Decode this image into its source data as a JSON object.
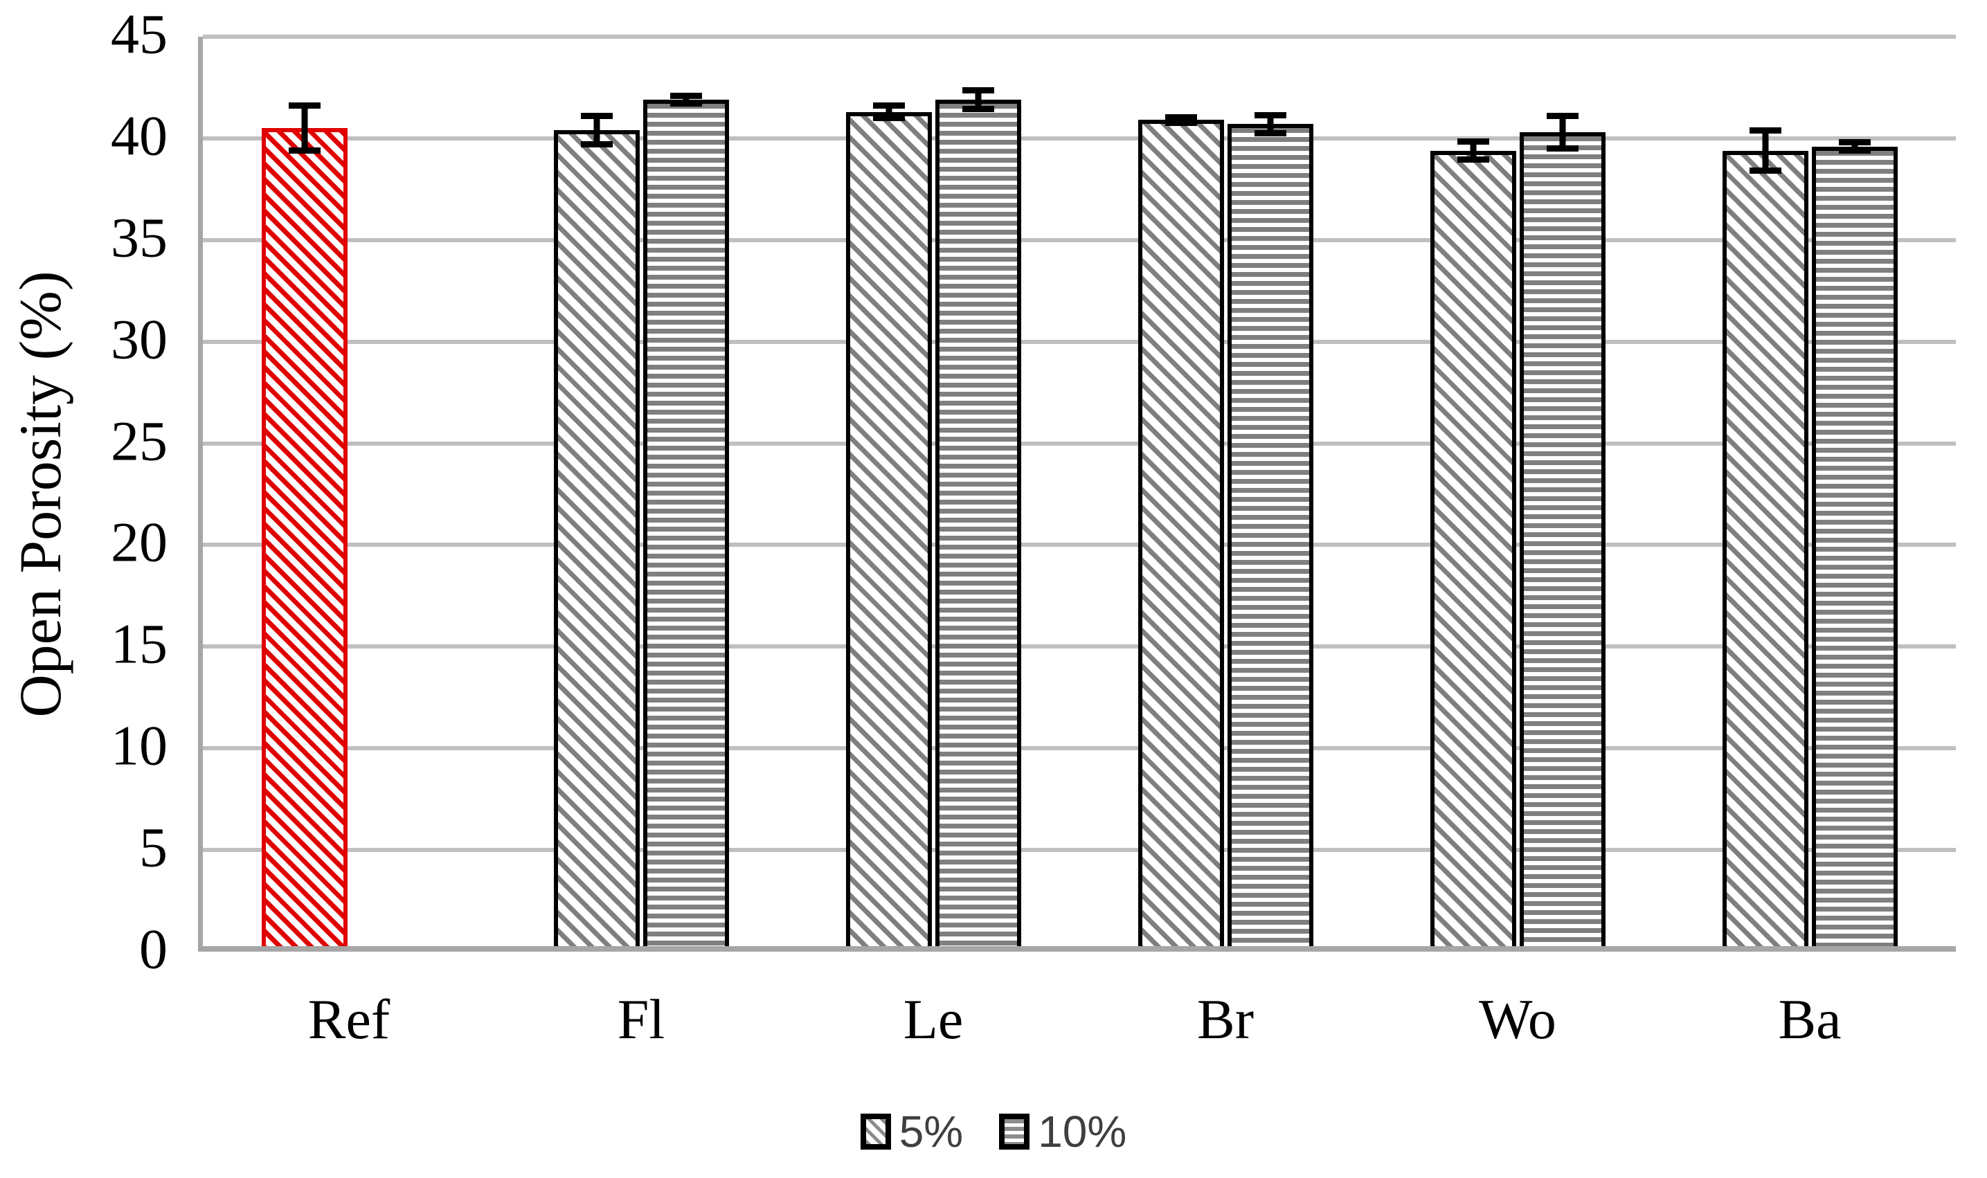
{
  "chart_data": {
    "type": "bar",
    "title": "",
    "xlabel": "",
    "ylabel": "Open Porosity (%)",
    "ylim": [
      0,
      45
    ],
    "yticks": [
      0,
      5,
      10,
      15,
      20,
      25,
      30,
      35,
      40,
      45
    ],
    "grid": true,
    "error_bars": true,
    "categories": [
      "Ref",
      "Fl",
      "Le",
      "Br",
      "Wo",
      "Ba"
    ],
    "series": [
      {
        "name": "5%",
        "pattern": "diagonal-hatch",
        "color": "#7f7f7f",
        "values": [
          40.5,
          40.4,
          41.3,
          40.9,
          39.4,
          39.4
        ],
        "errors": [
          1.1,
          0.7,
          0.3,
          0.15,
          0.45,
          1.0
        ]
      },
      {
        "name": "10%",
        "pattern": "horizontal-lines",
        "color": "#7f7f7f",
        "values": [
          null,
          41.9,
          41.9,
          40.7,
          40.3,
          39.6
        ],
        "errors": [
          null,
          0.2,
          0.45,
          0.45,
          0.8,
          0.2
        ]
      }
    ],
    "highlight": {
      "category": "Ref",
      "series": "5%",
      "color": "#e00000"
    },
    "legend": {
      "position": "bottom",
      "entries": [
        "5%",
        "10%"
      ]
    }
  },
  "colors": {
    "bar_border": "#000000",
    "highlight_red": "#e00000",
    "hatch_gray": "#7f7f7f",
    "gridline": "#bfbfbf",
    "axis": "#a6a6a6",
    "legend_text": "#3f3f3f"
  }
}
